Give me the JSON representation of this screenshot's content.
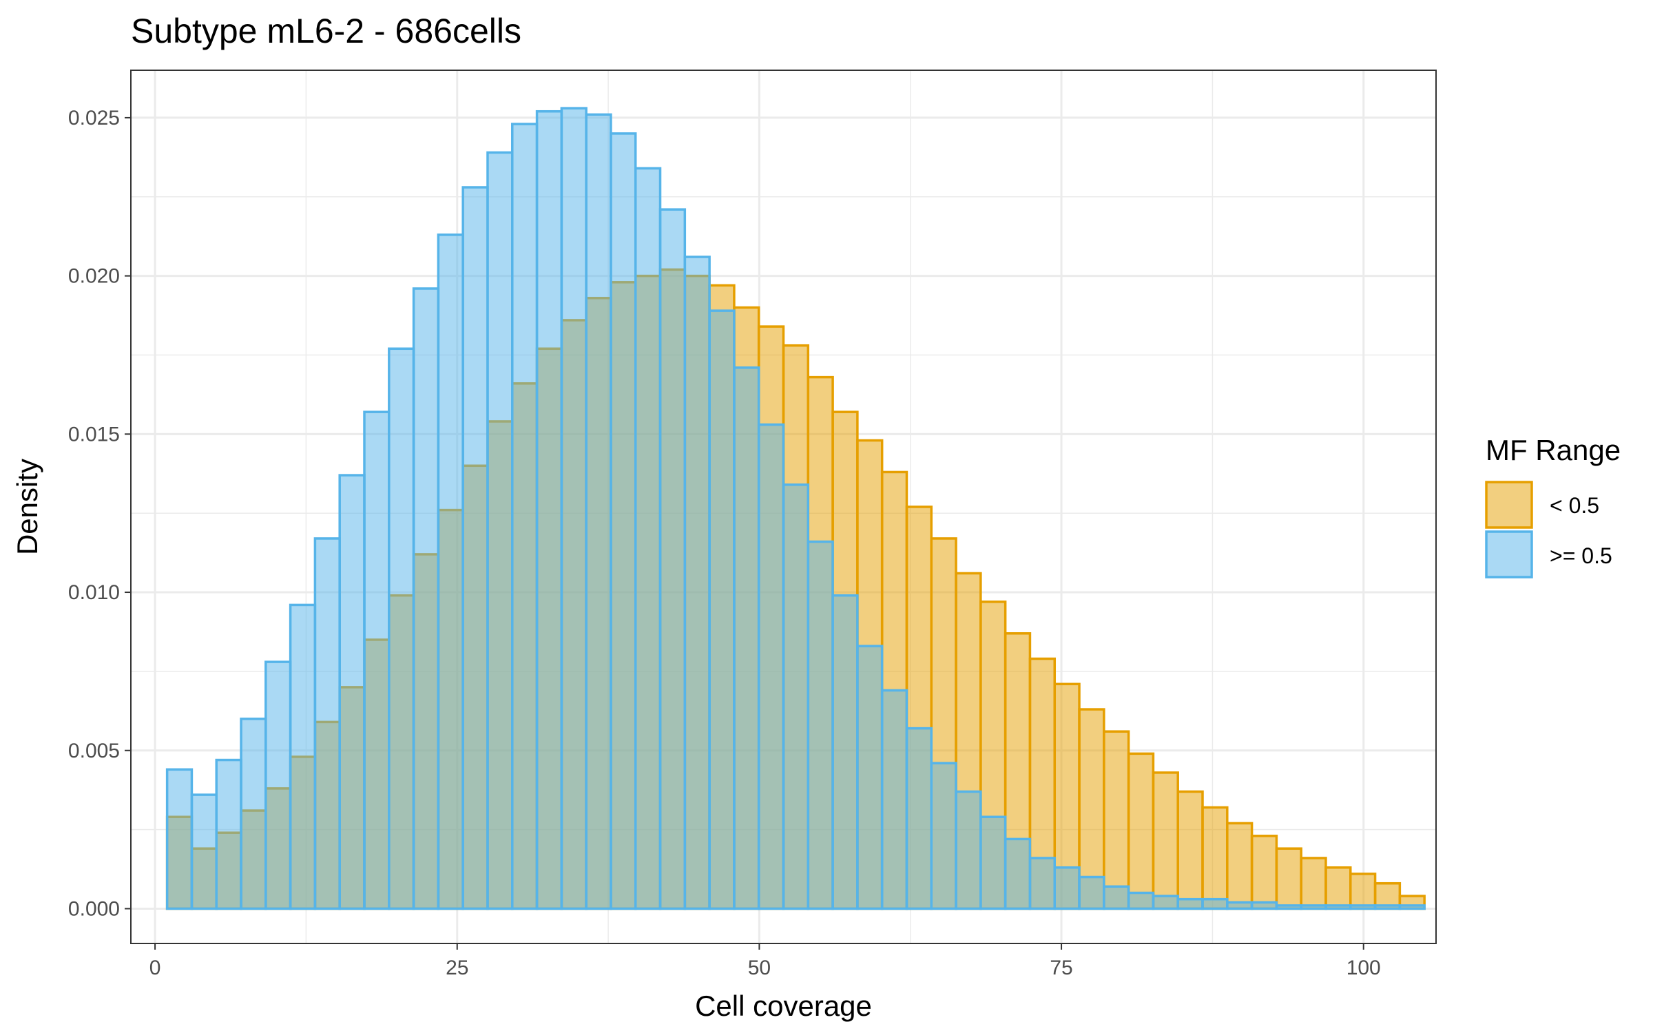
{
  "chart_data": {
    "type": "histogram",
    "title": "Subtype mL6-2 - 686cells",
    "xlabel": "Cell coverage",
    "ylabel": "Density",
    "xlim": [
      -2,
      106
    ],
    "ylim": [
      -0.0011,
      0.0265
    ],
    "x_ticks": [
      0,
      25,
      50,
      75,
      100
    ],
    "x_tick_labels": [
      "0",
      "25",
      "50",
      "75",
      "100"
    ],
    "y_ticks": [
      0,
      0.005,
      0.01,
      0.015,
      0.02,
      0.025
    ],
    "y_tick_labels": [
      "0.000",
      "0.005",
      "0.010",
      "0.015",
      "0.020",
      "0.025"
    ],
    "grid": true,
    "legend": {
      "title": "MF Range",
      "position": "right"
    },
    "bin_start": 1,
    "bin_width": 2.04,
    "series": [
      {
        "name": "< 0.5",
        "fill": "#E69F00",
        "stroke": "#E69F00",
        "values": [
          0.0029,
          0.0019,
          0.0024,
          0.0031,
          0.0038,
          0.0048,
          0.0059,
          0.007,
          0.0085,
          0.0099,
          0.0112,
          0.0126,
          0.014,
          0.0154,
          0.0166,
          0.0177,
          0.0186,
          0.0193,
          0.0198,
          0.02,
          0.0202,
          0.02,
          0.0197,
          0.019,
          0.0184,
          0.0178,
          0.0168,
          0.0157,
          0.0148,
          0.0138,
          0.0127,
          0.0117,
          0.0106,
          0.0097,
          0.0087,
          0.0079,
          0.0071,
          0.0063,
          0.0056,
          0.0049,
          0.0043,
          0.0037,
          0.0032,
          0.0027,
          0.0023,
          0.0019,
          0.0016,
          0.0013,
          0.0011,
          0.0008,
          0.0004
        ]
      },
      {
        "name": ">= 0.5",
        "fill": "#56B4E9",
        "stroke": "#56B4E9",
        "values": [
          0.0044,
          0.0036,
          0.0047,
          0.006,
          0.0078,
          0.0096,
          0.0117,
          0.0137,
          0.0157,
          0.0177,
          0.0196,
          0.0213,
          0.0228,
          0.0239,
          0.0248,
          0.0252,
          0.0253,
          0.0251,
          0.0245,
          0.0234,
          0.0221,
          0.0206,
          0.0189,
          0.0171,
          0.0153,
          0.0134,
          0.0116,
          0.0099,
          0.0083,
          0.0069,
          0.0057,
          0.0046,
          0.0037,
          0.0029,
          0.0022,
          0.0016,
          0.0013,
          0.001,
          0.0007,
          0.0005,
          0.0004,
          0.0003,
          0.0003,
          0.0002,
          0.0002,
          0.0001,
          0.0001,
          0.0001,
          0.0001,
          0.0001,
          0.0001
        ]
      }
    ]
  }
}
